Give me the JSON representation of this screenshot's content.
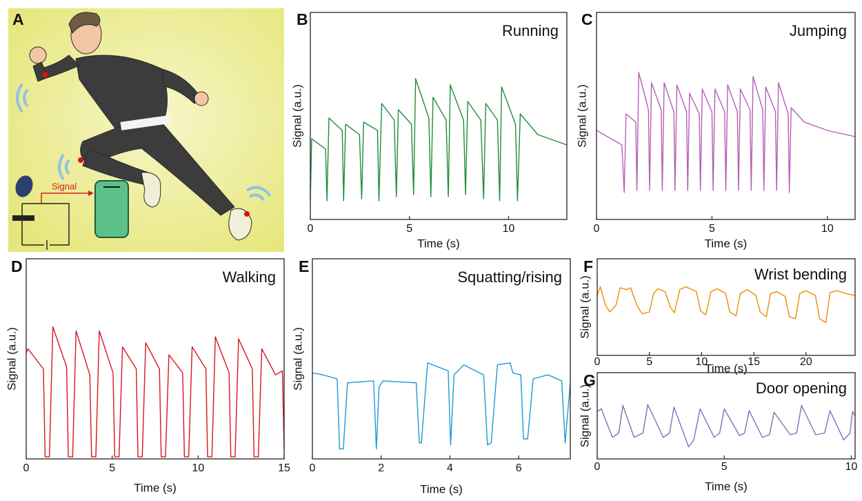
{
  "illustration": {
    "panel": "A",
    "label": "Signal"
  },
  "chart_data": [
    {
      "type": "line",
      "panel": "B",
      "title": "Running",
      "x_label": "Time (s)",
      "y_label": "Signal (a.u.)",
      "color": "#1e8c3a",
      "xlim": [
        0,
        12.94
      ],
      "ylim": [
        0,
        1
      ],
      "xticks": [
        0,
        5,
        10
      ],
      "x": [
        0,
        0.07,
        0.77,
        0.84,
        0.94,
        1.61,
        1.68,
        1.78,
        2.48,
        2.59,
        2.69,
        3.39,
        3.46,
        3.6,
        4.23,
        4.34,
        4.44,
        5.1,
        5.21,
        5.31,
        5.98,
        6.08,
        6.19,
        6.85,
        6.96,
        7.06,
        7.73,
        7.83,
        7.94,
        8.6,
        8.74,
        8.85,
        9.44,
        9.55,
        9.65,
        10.35,
        10.45,
        10.59,
        11.47,
        12.94
      ],
      "values": [
        0.09,
        0.39,
        0.34,
        0.09,
        0.49,
        0.43,
        0.09,
        0.46,
        0.41,
        0.1,
        0.47,
        0.43,
        0.09,
        0.56,
        0.48,
        0.11,
        0.53,
        0.46,
        0.12,
        0.68,
        0.49,
        0.11,
        0.59,
        0.48,
        0.11,
        0.65,
        0.48,
        0.12,
        0.57,
        0.48,
        0.1,
        0.56,
        0.48,
        0.09,
        0.64,
        0.46,
        0.09,
        0.51,
        0.41,
        0.36
      ]
    },
    {
      "type": "line",
      "panel": "C",
      "title": "Jumping",
      "x_label": "Time (s)",
      "y_label": "Signal (a.u.)",
      "color": "#b35fb3",
      "xlim": [
        0,
        11.2
      ],
      "ylim": [
        0,
        1
      ],
      "xticks": [
        0,
        5,
        10
      ],
      "x": [
        0,
        1.1,
        1.2,
        1.28,
        1.7,
        1.75,
        1.83,
        2.25,
        2.3,
        2.38,
        2.8,
        2.85,
        2.93,
        3.35,
        3.4,
        3.48,
        3.9,
        3.95,
        4.03,
        4.45,
        4.5,
        4.58,
        5.0,
        5.05,
        5.13,
        5.55,
        5.6,
        5.68,
        6.1,
        6.15,
        6.23,
        6.65,
        6.7,
        6.78,
        7.2,
        7.25,
        7.33,
        7.75,
        7.8,
        7.88,
        8.3,
        8.35,
        8.43,
        9.0,
        10.0,
        11.2
      ],
      "values": [
        0.43,
        0.36,
        0.13,
        0.51,
        0.47,
        0.14,
        0.71,
        0.53,
        0.14,
        0.66,
        0.53,
        0.14,
        0.66,
        0.52,
        0.14,
        0.65,
        0.52,
        0.14,
        0.61,
        0.51,
        0.14,
        0.63,
        0.52,
        0.14,
        0.63,
        0.52,
        0.14,
        0.65,
        0.52,
        0.14,
        0.63,
        0.53,
        0.14,
        0.69,
        0.53,
        0.14,
        0.64,
        0.52,
        0.14,
        0.66,
        0.51,
        0.13,
        0.54,
        0.47,
        0.43,
        0.4
      ]
    },
    {
      "type": "line",
      "panel": "D",
      "title": "Walking",
      "x_label": "Time (s)",
      "y_label": "Signal (a.u.)",
      "color": "#d8141e",
      "xlim": [
        0,
        15
      ],
      "ylim": [
        0,
        1
      ],
      "xticks": [
        0,
        5,
        10,
        15
      ],
      "x": [
        0,
        0.1,
        1.0,
        1.1,
        1.35,
        1.55,
        2.35,
        2.45,
        2.7,
        2.9,
        3.7,
        3.8,
        4.05,
        4.25,
        5.05,
        5.15,
        5.4,
        5.6,
        6.4,
        6.5,
        6.75,
        6.95,
        7.75,
        7.85,
        8.1,
        8.3,
        9.1,
        9.2,
        9.45,
        9.65,
        10.45,
        10.55,
        10.8,
        11.0,
        11.8,
        11.9,
        12.15,
        12.35,
        13.15,
        13.25,
        13.5,
        13.7,
        14.5,
        14.9,
        15
      ],
      "values": [
        0.53,
        0.55,
        0.45,
        0.01,
        0.01,
        0.66,
        0.46,
        0.01,
        0.01,
        0.64,
        0.42,
        0.01,
        0.01,
        0.64,
        0.43,
        0.01,
        0.01,
        0.56,
        0.45,
        0.01,
        0.01,
        0.58,
        0.45,
        0.01,
        0.01,
        0.52,
        0.43,
        0.01,
        0.01,
        0.56,
        0.45,
        0.01,
        0.01,
        0.61,
        0.43,
        0.01,
        0.01,
        0.6,
        0.45,
        0.01,
        0.01,
        0.55,
        0.42,
        0.44,
        0.05
      ]
    },
    {
      "type": "line",
      "panel": "E",
      "title": "Squatting/rising",
      "x_label": "Time (s)",
      "y_label": "Signal (a.u.)",
      "color": "#1a9ad6",
      "xlim": [
        0,
        7.5
      ],
      "ylim": [
        0,
        1
      ],
      "xticks": [
        0,
        2,
        4,
        6
      ],
      "x": [
        0,
        0.3,
        0.72,
        0.79,
        0.9,
        1.02,
        1.78,
        1.86,
        1.94,
        2.05,
        3.02,
        3.11,
        3.17,
        3.35,
        3.95,
        4.02,
        4.12,
        4.4,
        4.98,
        5.09,
        5.2,
        5.38,
        5.75,
        5.83,
        6.06,
        6.14,
        6.26,
        6.42,
        6.85,
        7.25,
        7.35,
        7.5
      ],
      "values": [
        0.43,
        0.42,
        0.4,
        0.05,
        0.05,
        0.38,
        0.39,
        0.05,
        0.36,
        0.39,
        0.38,
        0.08,
        0.08,
        0.48,
        0.44,
        0.07,
        0.42,
        0.47,
        0.42,
        0.07,
        0.08,
        0.47,
        0.48,
        0.43,
        0.42,
        0.1,
        0.1,
        0.4,
        0.42,
        0.39,
        0.08,
        0.38
      ]
    },
    {
      "type": "line",
      "panel": "F",
      "title": "Wrist bending",
      "x_label": "Time (s)",
      "y_label": "Signal (a.u.)",
      "color": "#f08a00",
      "xlim": [
        0,
        24.7
      ],
      "ylim": [
        0,
        1
      ],
      "xticks": [
        0,
        5,
        10,
        15,
        20
      ],
      "x": [
        0,
        0.3,
        0.8,
        1.2,
        1.8,
        2.2,
        2.8,
        3.2,
        3.8,
        4.3,
        5.0,
        5.4,
        5.8,
        6.5,
        7.0,
        7.4,
        7.9,
        8.5,
        9.5,
        9.9,
        10.4,
        10.9,
        11.5,
        12.3,
        12.7,
        13.3,
        13.7,
        14.4,
        15.2,
        15.6,
        16.2,
        16.6,
        17.2,
        18.0,
        18.4,
        19.0,
        19.4,
        20.0,
        20.9,
        21.3,
        21.9,
        22.3,
        23.0,
        23.8,
        24.7
      ],
      "values": [
        0.62,
        0.71,
        0.52,
        0.45,
        0.52,
        0.7,
        0.68,
        0.7,
        0.52,
        0.43,
        0.45,
        0.64,
        0.69,
        0.66,
        0.5,
        0.44,
        0.68,
        0.71,
        0.66,
        0.46,
        0.42,
        0.66,
        0.69,
        0.64,
        0.45,
        0.41,
        0.64,
        0.68,
        0.62,
        0.45,
        0.4,
        0.64,
        0.66,
        0.61,
        0.4,
        0.38,
        0.64,
        0.67,
        0.62,
        0.38,
        0.34,
        0.65,
        0.67,
        0.64,
        0.62
      ]
    },
    {
      "type": "line",
      "panel": "G",
      "title": "Door opening",
      "x_label": "Time (s)",
      "y_label": "Signal (a.u.)",
      "color": "#8a6ab8",
      "xlim": [
        0,
        10.15
      ],
      "ylim": [
        0,
        1
      ],
      "xticks": [
        0,
        5,
        10
      ],
      "x": [
        0,
        0.16,
        0.6,
        0.85,
        1.01,
        1.45,
        1.8,
        1.99,
        2.6,
        2.85,
        3.02,
        3.6,
        3.8,
        4.05,
        4.6,
        4.82,
        5.0,
        5.6,
        5.8,
        5.98,
        6.5,
        6.78,
        6.96,
        7.6,
        7.85,
        8.04,
        8.6,
        8.95,
        9.16,
        9.7,
        9.95,
        10.05,
        10.15
      ],
      "values": [
        0.55,
        0.58,
        0.25,
        0.3,
        0.62,
        0.25,
        0.3,
        0.63,
        0.25,
        0.3,
        0.6,
        0.14,
        0.22,
        0.58,
        0.25,
        0.3,
        0.58,
        0.27,
        0.3,
        0.56,
        0.25,
        0.28,
        0.54,
        0.28,
        0.3,
        0.62,
        0.28,
        0.3,
        0.56,
        0.22,
        0.3,
        0.55,
        0.5
      ]
    }
  ]
}
